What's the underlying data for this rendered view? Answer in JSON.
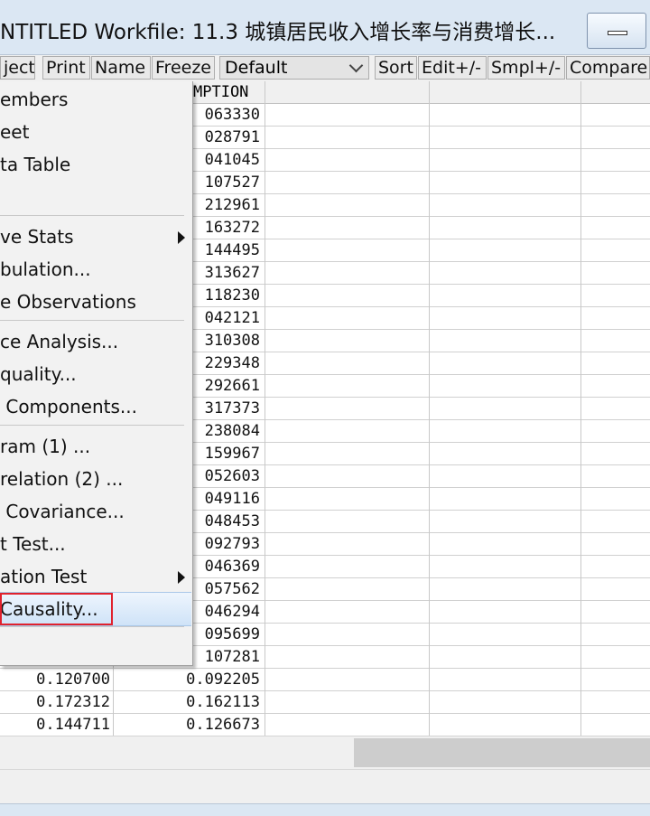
{
  "window": {
    "title": "NTITLED   Workfile: 11.3 城镇居民收入增长率与消费增长..."
  },
  "toolbar": {
    "buttons": [
      "ject",
      "Print",
      "Name",
      "Freeze"
    ],
    "combo_value": "Default",
    "buttons_right": [
      "Sort",
      "Edit+/-",
      "Smpl+/-",
      "Compare+"
    ]
  },
  "sheet": {
    "header_b": "MPTION",
    "column_b_partial": [
      "063330",
      "028791",
      "041045",
      "107527",
      "212961",
      "163272",
      "144495",
      "313627",
      "118230",
      "042121",
      "310308",
      "229348",
      "292661",
      "317373",
      "238084",
      "159967",
      "052603",
      "049116",
      "048453",
      "092793",
      "046369",
      "057562",
      "046294",
      "095699",
      "107281"
    ],
    "rows_full": [
      {
        "a": "0.120700",
        "b": "0.092205"
      },
      {
        "a": "0.172312",
        "b": "0.162113"
      },
      {
        "a": "0.144711",
        "b": "0.126673"
      }
    ]
  },
  "menu": {
    "items": [
      {
        "label": "embers"
      },
      {
        "label": "eet"
      },
      {
        "label": "ta Table"
      },
      {
        "label": "ve Stats",
        "submenu": true
      },
      {
        "label": "bulation..."
      },
      {
        "label": "e Observations"
      },
      {
        "label": "ce Analysis..."
      },
      {
        "label": "quality..."
      },
      {
        "label": " Components..."
      },
      {
        "label": "ram (1) ..."
      },
      {
        "label": "relation (2) ..."
      },
      {
        "label": " Covariance..."
      },
      {
        "label": "t Test..."
      },
      {
        "label": "ation Test",
        "submenu": true
      },
      {
        "label": "Causality...",
        "highlighted": true
      }
    ]
  },
  "colors": {
    "highlight": "#cfe3f8",
    "annotation_box": "#e0222e",
    "titlebar": "#dbe7f3"
  }
}
